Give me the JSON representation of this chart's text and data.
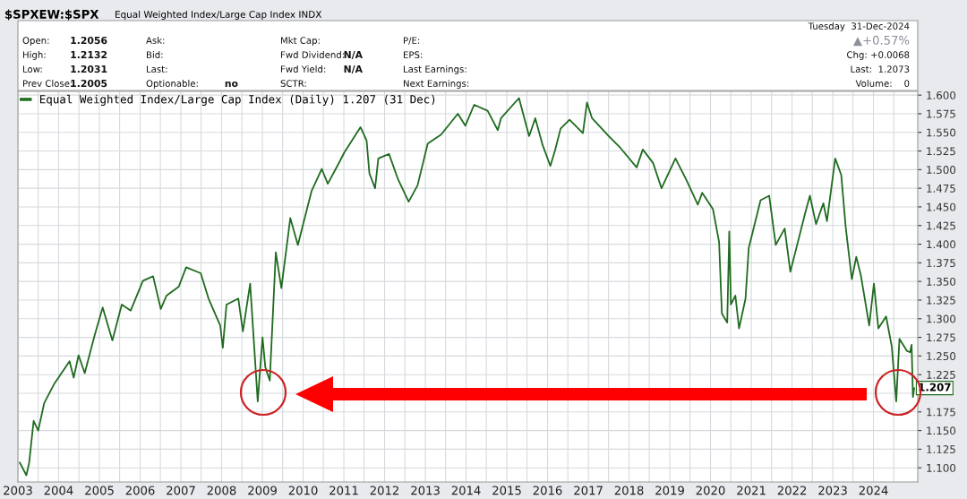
{
  "chart_data": {
    "type": "line",
    "title": "$SPXEW:$SPX",
    "subtitle": "Equal Weighted Index/Large Cap Index INDX",
    "x": [
      "2003-01-18",
      "2003-03-18",
      "2003-04-12",
      "2003-05-22",
      "2003-07-02",
      "2003-08-25",
      "2003-11-24",
      "2004-04-08",
      "2004-05-15",
      "2004-06-28",
      "2004-08-22",
      "2004-11-21",
      "2005-01-30",
      "2005-04-27",
      "2005-07-20",
      "2005-10-08",
      "2006-01-26",
      "2006-04-27",
      "2006-07-05",
      "2006-08-25",
      "2006-12-13",
      "2007-02-17",
      "2007-06-28",
      "2007-09-06",
      "2007-12-20",
      "2008-01-12",
      "2008-02-14",
      "2008-05-30",
      "2008-07-10",
      "2008-09-13",
      "2008-11-20",
      "2009-01-02",
      "2009-01-27",
      "2009-03-08",
      "2009-05-01",
      "2009-06-20",
      "2009-09-08",
      "2009-11-15",
      "2010-03-17",
      "2010-06-17",
      "2010-08-10",
      "2010-11-25",
      "2011-01-05",
      "2011-05-30",
      "2011-07-24",
      "2011-08-18",
      "2011-10-08",
      "2011-11-06",
      "2012-02-10",
      "2012-05-01",
      "2012-08-04",
      "2012-10-23",
      "2013-01-22",
      "2013-05-22",
      "2013-10-19",
      "2013-12-25",
      "2014-03-14",
      "2014-07-13",
      "2014-10-12",
      "2014-11-10",
      "2015-04-20",
      "2015-07-20",
      "2015-09-13",
      "2015-11-18",
      "2016-01-26",
      "2016-03-07",
      "2016-04-27",
      "2016-07-16",
      "2016-11-13",
      "2016-12-20",
      "2017-02-03",
      "2017-07-02",
      "2017-10-16",
      "2018-03-10",
      "2018-05-04",
      "2018-08-04",
      "2018-10-19",
      "2019-02-21",
      "2019-05-27",
      "2019-09-09",
      "2019-10-19",
      "2020-01-23",
      "2020-03-18",
      "2020-04-12",
      "2020-05-30",
      "2020-06-17",
      "2020-07-02",
      "2020-08-11",
      "2020-09-13",
      "2020-11-10",
      "2020-12-09",
      "2021-03-25",
      "2021-06-10",
      "2021-08-08",
      "2021-10-27",
      "2021-12-17",
      "2022-05-01",
      "2022-06-10",
      "2022-08-04",
      "2022-10-09",
      "2022-11-10",
      "2023-01-23",
      "2023-03-18",
      "2023-04-27",
      "2023-06-21",
      "2023-07-31",
      "2023-09-09",
      "2023-11-24",
      "2024-01-05",
      "2024-02-14",
      "2024-04-23",
      "2024-06-13",
      "2024-07-23",
      "2024-08-21",
      "2024-10-26",
      "2024-11-24",
      "2024-12-08",
      "2024-12-20",
      "2024-12-31"
    ],
    "series": [
      {
        "name": "Equal Weighted Index/Large Cap Index (Daily) 1.207 (31 Dec)",
        "color": "#1f6b1f",
        "values": [
          1.107,
          1.09,
          1.107,
          1.163,
          1.15,
          1.187,
          1.213,
          1.243,
          1.221,
          1.251,
          1.227,
          1.279,
          1.315,
          1.271,
          1.319,
          1.311,
          1.351,
          1.357,
          1.313,
          1.331,
          1.343,
          1.369,
          1.361,
          1.327,
          1.291,
          1.261,
          1.319,
          1.327,
          1.283,
          1.347,
          1.189,
          1.275,
          1.235,
          1.217,
          1.389,
          1.341,
          1.435,
          1.399,
          1.471,
          1.501,
          1.481,
          1.511,
          1.523,
          1.557,
          1.539,
          1.495,
          1.475,
          1.515,
          1.521,
          1.487,
          1.457,
          1.479,
          1.535,
          1.547,
          1.575,
          1.559,
          1.587,
          1.579,
          1.553,
          1.569,
          1.596,
          1.545,
          1.569,
          1.533,
          1.505,
          1.525,
          1.555,
          1.567,
          1.549,
          1.59,
          1.569,
          1.545,
          1.529,
          1.503,
          1.527,
          1.509,
          1.475,
          1.515,
          1.487,
          1.453,
          1.469,
          1.447,
          1.403,
          1.307,
          1.295,
          1.417,
          1.319,
          1.331,
          1.287,
          1.327,
          1.395,
          1.459,
          1.465,
          1.399,
          1.421,
          1.363,
          1.443,
          1.465,
          1.427,
          1.455,
          1.431,
          1.515,
          1.493,
          1.423,
          1.353,
          1.383,
          1.359,
          1.291,
          1.347,
          1.287,
          1.303,
          1.263,
          1.189,
          1.273,
          1.257,
          1.255,
          1.265,
          1.195,
          1.207
        ]
      }
    ],
    "xlim": [
      "2003-01-01",
      "2025-02-01"
    ],
    "ylim": [
      1.081,
      1.605
    ],
    "xticks": [
      {
        "value": "2003-01-01",
        "label": "2003"
      },
      {
        "value": "2003-07-01",
        "label": null
      },
      {
        "value": "2004-01-01",
        "label": "2004"
      },
      {
        "value": "2004-07-01",
        "label": null
      },
      {
        "value": "2005-01-01",
        "label": "2005"
      },
      {
        "value": "2005-07-01",
        "label": null
      },
      {
        "value": "2006-01-01",
        "label": "2006"
      },
      {
        "value": "2006-07-01",
        "label": null
      },
      {
        "value": "2007-01-01",
        "label": "2007"
      },
      {
        "value": "2007-07-01",
        "label": null
      },
      {
        "value": "2008-01-01",
        "label": "2008"
      },
      {
        "value": "2008-07-01",
        "label": null
      },
      {
        "value": "2009-01-01",
        "label": "2009"
      },
      {
        "value": "2009-07-01",
        "label": null
      },
      {
        "value": "2010-01-01",
        "label": "2010"
      },
      {
        "value": "2010-07-01",
        "label": null
      },
      {
        "value": "2011-01-01",
        "label": "2011"
      },
      {
        "value": "2011-07-01",
        "label": null
      },
      {
        "value": "2012-01-01",
        "label": "2012"
      },
      {
        "value": "2012-07-01",
        "label": null
      },
      {
        "value": "2013-01-01",
        "label": "2013"
      },
      {
        "value": "2013-07-01",
        "label": null
      },
      {
        "value": "2014-01-01",
        "label": "2014"
      },
      {
        "value": "2014-07-01",
        "label": null
      },
      {
        "value": "2015-01-01",
        "label": "2015"
      },
      {
        "value": "2015-07-01",
        "label": null
      },
      {
        "value": "2016-01-01",
        "label": "2016"
      },
      {
        "value": "2016-07-01",
        "label": null
      },
      {
        "value": "2017-01-01",
        "label": "2017"
      },
      {
        "value": "2017-07-01",
        "label": null
      },
      {
        "value": "2018-01-01",
        "label": "2018"
      },
      {
        "value": "2018-07-01",
        "label": null
      },
      {
        "value": "2019-01-01",
        "label": "2019"
      },
      {
        "value": "2019-07-01",
        "label": null
      },
      {
        "value": "2020-01-01",
        "label": "2020"
      },
      {
        "value": "2020-07-01",
        "label": null
      },
      {
        "value": "2021-01-01",
        "label": "2021"
      },
      {
        "value": "2021-07-01",
        "label": null
      },
      {
        "value": "2022-01-01",
        "label": "2022"
      },
      {
        "value": "2022-07-01",
        "label": null
      },
      {
        "value": "2023-01-01",
        "label": "2023"
      },
      {
        "value": "2023-07-01",
        "label": null
      },
      {
        "value": "2024-01-01",
        "label": "2024"
      },
      {
        "value": "2024-07-01",
        "label": null
      }
    ],
    "yticks": [
      {
        "value": 1.1,
        "label": "1.100"
      },
      {
        "value": 1.125,
        "label": "1.125"
      },
      {
        "value": 1.15,
        "label": "1.150"
      },
      {
        "value": 1.175,
        "label": "1.175"
      },
      {
        "value": 1.2,
        "label": null
      },
      {
        "value": 1.225,
        "label": "1.225"
      },
      {
        "value": 1.25,
        "label": "1.250"
      },
      {
        "value": 1.275,
        "label": "1.275"
      },
      {
        "value": 1.3,
        "label": "1.300"
      },
      {
        "value": 1.325,
        "label": "1.325"
      },
      {
        "value": 1.35,
        "label": "1.350"
      },
      {
        "value": 1.375,
        "label": "1.375"
      },
      {
        "value": 1.4,
        "label": "1.400"
      },
      {
        "value": 1.425,
        "label": "1.425"
      },
      {
        "value": 1.45,
        "label": "1.450"
      },
      {
        "value": 1.475,
        "label": "1.475"
      },
      {
        "value": 1.5,
        "label": "1.500"
      },
      {
        "value": 1.525,
        "label": "1.525"
      },
      {
        "value": 1.55,
        "label": "1.550"
      },
      {
        "value": 1.575,
        "label": "1.575"
      },
      {
        "value": 1.6,
        "label": "1.600"
      }
    ],
    "grid": true,
    "legend": "top left",
    "annotations": [
      "Open:",
      "1.2056",
      "High:",
      "1.2132",
      "Low:",
      "1.2031",
      "Prev Close:",
      "1.2005",
      "Ask:",
      "Bid:",
      "Last:",
      "Optionable:",
      "no",
      "Mkt Cap:",
      "Fwd Dividend:",
      "N/A",
      "Fwd Yield:",
      "N/A",
      "SCTR:",
      "P/E:",
      "EPS:",
      "Last Earnings:",
      "Next Earnings:",
      "Tuesday  31-Dec-2024",
      "▲+0.57%",
      "Chg: +0.0068",
      "Last:  1.2073",
      "Volume:    0",
      {
        "text": "1.207",
        "x": "2024-12-31",
        "y": 1.207
      }
    ]
  }
}
